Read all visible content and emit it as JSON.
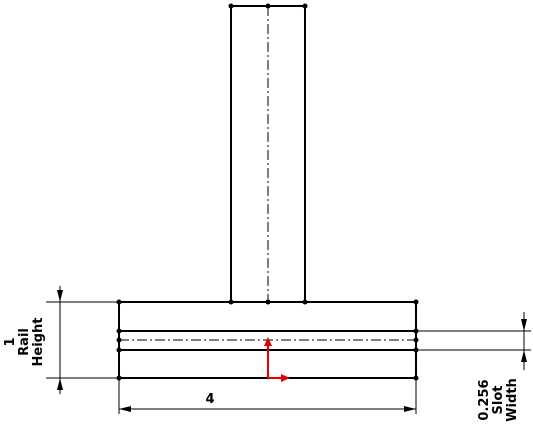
{
  "dimensions": {
    "rail_height": {
      "value": "1",
      "label_line1": "Rail",
      "label_line2": "Height"
    },
    "width": {
      "value": "4"
    },
    "slot_width": {
      "value": "0.256",
      "label_line1": "Slot",
      "label_line2": "Width"
    }
  },
  "colors": {
    "line": "#000000",
    "origin_arrow": "#e60000"
  },
  "icons": {
    "origin": "origin-axes-icon"
  }
}
